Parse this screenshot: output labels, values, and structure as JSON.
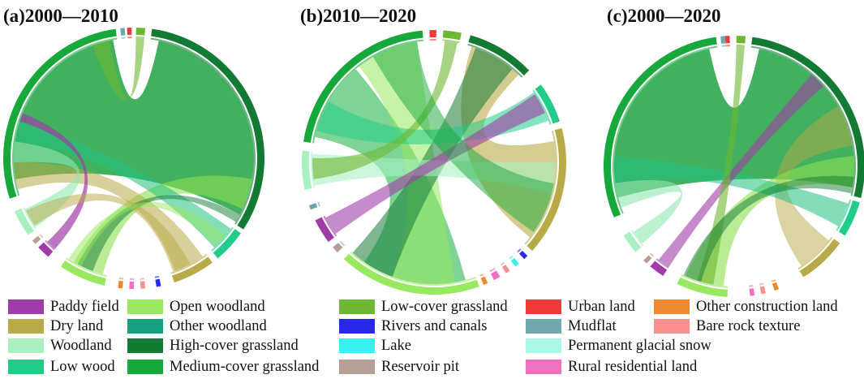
{
  "chart_data": [
    {
      "type": "chord",
      "title": "(a)2000—2010",
      "dominant": [
        {
          "from": "Medium-cover grassland",
          "to": "High-cover grassland",
          "weight": "major"
        }
      ]
    },
    {
      "type": "chord",
      "title": "(b)2010—2020",
      "dominant": [
        {
          "from": "Medium-cover grassland",
          "to": "Open woodland",
          "weight": "major"
        },
        {
          "from": "Dry land",
          "to": "High-cover grassland",
          "weight": "major"
        }
      ]
    },
    {
      "type": "chord",
      "title": "(c)2000—2020",
      "dominant": [
        {
          "from": "Medium-cover grassland",
          "to": "High-cover grassland",
          "weight": "major"
        }
      ]
    }
  ],
  "legend": [
    {
      "label": "Paddy field",
      "color": "#a03ca8"
    },
    {
      "label": "Dry land",
      "color": "#b8aa46"
    },
    {
      "label": "Woodland",
      "color": "#a8f0c0"
    },
    {
      "label": "Low wood",
      "color": "#20cc88"
    },
    {
      "label": "Open woodland",
      "color": "#98e860"
    },
    {
      "label": "Other woodland",
      "color": "#15a080"
    },
    {
      "label": "High-cover grassland",
      "color": "#137a34"
    },
    {
      "label": "Medium-cover grassland",
      "color": "#16a83a"
    },
    {
      "label": "Low-cover grassland",
      "color": "#6cb830"
    },
    {
      "label": "Rivers and canals",
      "color": "#2828e8"
    },
    {
      "label": "Lake",
      "color": "#38f0f0"
    },
    {
      "label": "Reservoir pit",
      "color": "#b4a096"
    },
    {
      "label": "Urban land",
      "color": "#f03a3a"
    },
    {
      "label": "Mudflat",
      "color": "#6ea8a8"
    },
    {
      "label": "Permanent glacial snow",
      "color": "#a8f8e8"
    },
    {
      "label": "Rural residential land",
      "color": "#f070c0"
    },
    {
      "label": "Other construction land",
      "color": "#f08830"
    },
    {
      "label": "Bare rock texture",
      "color": "#f89090"
    }
  ]
}
